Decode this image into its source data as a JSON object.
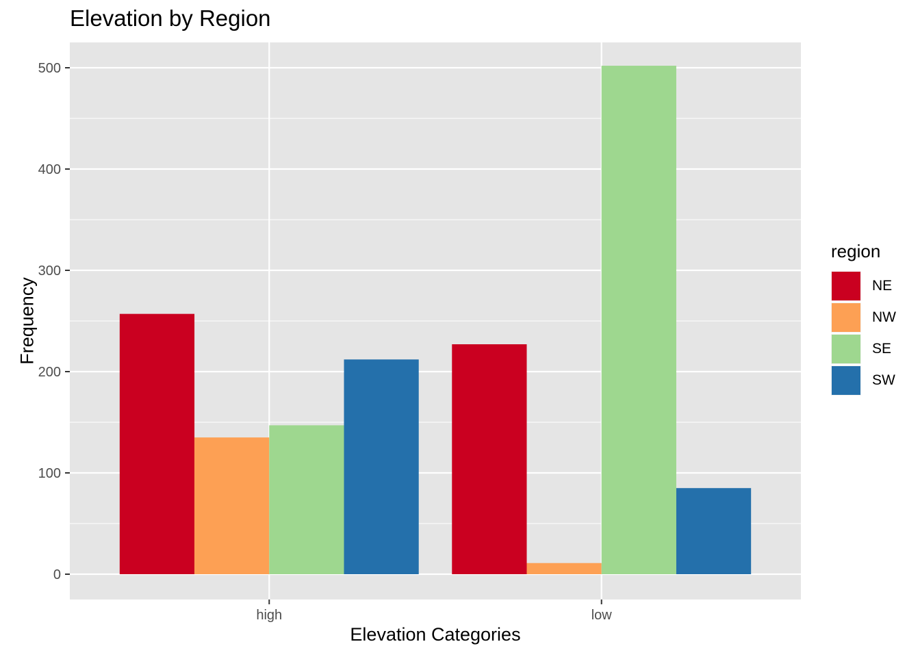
{
  "chart_data": {
    "type": "bar",
    "title": "Elevation by Region",
    "xlabel": "Elevation Categories",
    "ylabel": "Frequency",
    "categories": [
      "high",
      "low"
    ],
    "series": [
      {
        "name": "NE",
        "values": [
          257,
          227
        ],
        "color": "#CA0020"
      },
      {
        "name": "NW",
        "values": [
          135,
          11
        ],
        "color": "#FDA054"
      },
      {
        "name": "SE",
        "values": [
          147,
          502
        ],
        "color": "#9ED78F"
      },
      {
        "name": "SW",
        "values": [
          212,
          85
        ],
        "color": "#2470AB"
      }
    ],
    "ylim": [
      -25,
      525
    ],
    "yticks": [
      0,
      100,
      200,
      300,
      400,
      500
    ],
    "grid": true,
    "legend_title": "region",
    "legend_position": "right"
  }
}
